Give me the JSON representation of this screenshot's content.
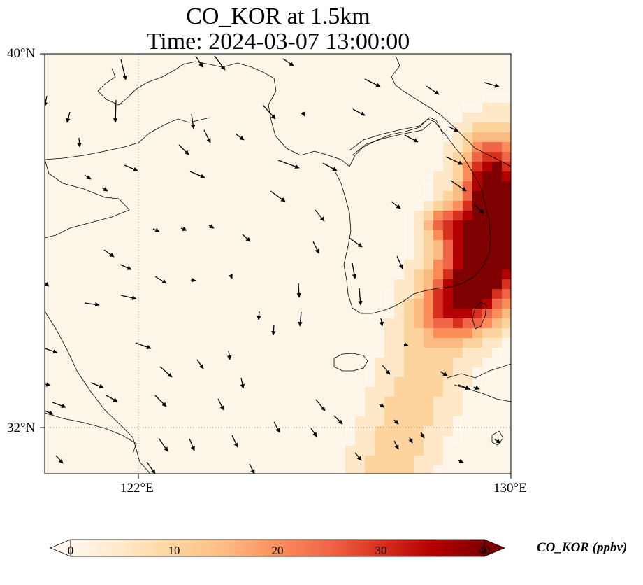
{
  "title": {
    "line1": "CO_KOR at 1.5km",
    "line2": "Time: 2024-03-07 13:00:00"
  },
  "lat_labels": [
    "40°N",
    "32°N"
  ],
  "lon_labels": [
    "122°E",
    "130°E"
  ],
  "map_extent": {
    "lon": [
      120,
      130
    ],
    "lat": [
      31,
      40
    ]
  },
  "gridlines": {
    "lon": [
      122
    ],
    "lat": [
      32
    ],
    "style": "dotted"
  },
  "colorbar": {
    "label": "CO_KOR (ppbv)",
    "ticks": [
      "0",
      "10",
      "20",
      "30",
      "40"
    ],
    "colormap": "OrRd",
    "range": [
      0,
      40
    ],
    "extend": "both",
    "colors": [
      "#fff7ec",
      "#fee8c8",
      "#fdd49e",
      "#fdbb84",
      "#fc8d59",
      "#ef6548",
      "#d7301f",
      "#b30000",
      "#7f0000"
    ]
  },
  "colors": {
    "ocean_land_background": "#fdf5e8",
    "coastline": "#000000",
    "gridline": "#888888"
  },
  "field_description_values": {
    "max_ppbv": 40,
    "plume_core": "over eastern Korea near 129-130E, 35-37N",
    "plume_tail": "extends south-west toward 32N, 127E"
  }
}
